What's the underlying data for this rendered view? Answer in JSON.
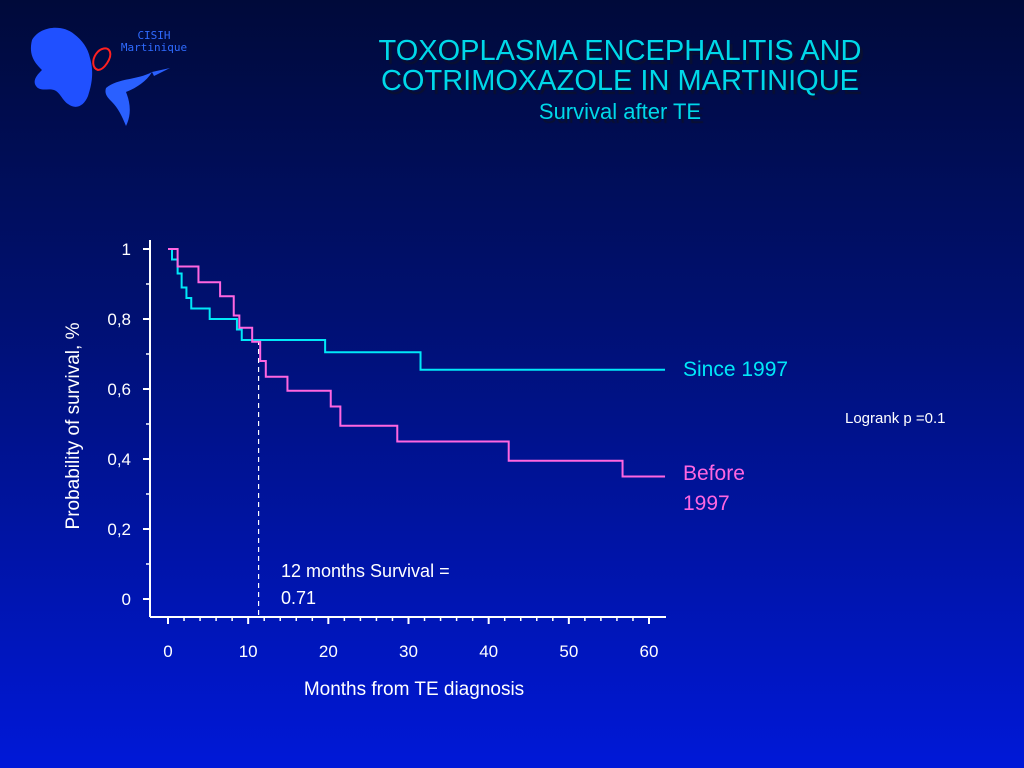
{
  "header": {
    "title_line1": "TOXOPLASMA ENCEPHALITIS AND",
    "title_line2": "COTRIMOXAZOLE IN MARTINIQUE",
    "subtitle": "Survival after TE"
  },
  "logo": {
    "text_line1": "CISIH",
    "text_line2": "Martinique",
    "icon": "martinique-map-hummingbird-logo"
  },
  "annotation": {
    "line1": "12 months Survival =",
    "line2": "0.71"
  },
  "logrank": "Logrank p =0.1",
  "colors": {
    "since_1997": "#00e8f8",
    "before_1997": "#ff66e0",
    "axis": "#ffffff",
    "title": "#00d8e8"
  },
  "chart_data": {
    "type": "line",
    "step": true,
    "title": "",
    "xlabel": "Months from TE diagnosis",
    "ylabel": "Probability of survival, %",
    "xlim": [
      0,
      60
    ],
    "ylim": [
      0,
      1
    ],
    "x_ticks": [
      0,
      10,
      20,
      30,
      40,
      50,
      60
    ],
    "x_tick_labels": [
      "0",
      "10",
      "20",
      "30",
      "40",
      "50",
      "60"
    ],
    "y_ticks": [
      0,
      0.2,
      0.4,
      0.6,
      0.8,
      1
    ],
    "y_tick_labels": [
      "0",
      "0,2",
      "0,4",
      "0,6",
      "0,8",
      "1"
    ],
    "grid": false,
    "reference_line": {
      "x": 11.3,
      "style": "dashed"
    },
    "series": [
      {
        "name": "Since 1997",
        "label_lines": [
          "Since 1997"
        ],
        "color": "#00e8f8",
        "points": [
          [
            0,
            1.0
          ],
          [
            0.5,
            0.97
          ],
          [
            1.2,
            0.93
          ],
          [
            1.7,
            0.89
          ],
          [
            2.3,
            0.86
          ],
          [
            2.9,
            0.83
          ],
          [
            5.2,
            0.8
          ],
          [
            8.6,
            0.77
          ],
          [
            9.2,
            0.74
          ],
          [
            19.6,
            0.705
          ],
          [
            31.5,
            0.655
          ],
          [
            62,
            0.655
          ]
        ]
      },
      {
        "name": "Before 1997",
        "label_lines": [
          "Before",
          "1997"
        ],
        "color": "#ff66e0",
        "points": [
          [
            0,
            1.0
          ],
          [
            1.2,
            0.95
          ],
          [
            3.8,
            0.905
          ],
          [
            6.5,
            0.865
          ],
          [
            8.2,
            0.81
          ],
          [
            8.9,
            0.775
          ],
          [
            10.5,
            0.735
          ],
          [
            11.5,
            0.68
          ],
          [
            12.2,
            0.635
          ],
          [
            14.9,
            0.595
          ],
          [
            20.3,
            0.55
          ],
          [
            21.5,
            0.495
          ],
          [
            28.6,
            0.45
          ],
          [
            42.5,
            0.395
          ],
          [
            56.7,
            0.35
          ],
          [
            62,
            0.35
          ]
        ]
      }
    ]
  }
}
